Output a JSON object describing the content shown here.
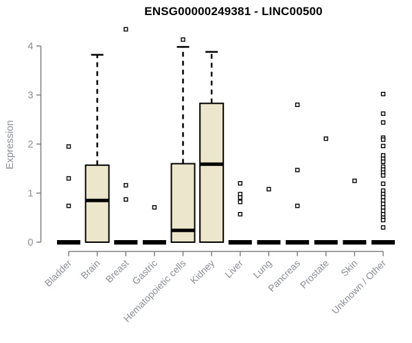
{
  "chart_data": {
    "type": "boxplot",
    "title": "ENSG00000249381 - LINC00500",
    "ylabel": "Expression",
    "xlabel": "",
    "ylim": [
      0,
      4
    ],
    "yticks": [
      0,
      1,
      2,
      3,
      4
    ],
    "grid": false,
    "legend": "none",
    "colors": {
      "box_fill": "#ebe6cc",
      "box_border": "#000000",
      "median": "#000000",
      "whisker": "#000000",
      "outlier_fill": "#ffffff",
      "outlier_border": "#000000",
      "axis": "#7f7f7f",
      "tick_text": "#898d95",
      "title_text": "#000000"
    },
    "categories": [
      "Bladder",
      "Brain",
      "Breast",
      "Gastric",
      "Hematopoietic cells",
      "Kidney",
      "Liver",
      "Lung",
      "Pancreas",
      "Prostate",
      "Skin",
      "Unknown / Other"
    ],
    "series": [
      {
        "category": "Bladder",
        "q1": 0,
        "median": 0,
        "q3": 0,
        "whisker_low": 0,
        "whisker_high": 0,
        "outliers": [
          1.95,
          1.3,
          0.74
        ]
      },
      {
        "category": "Brain",
        "q1": 0,
        "median": 0.85,
        "q3": 1.57,
        "whisker_low": 0,
        "whisker_high": 3.82,
        "outliers": []
      },
      {
        "category": "Breast",
        "q1": 0,
        "median": 0,
        "q3": 0,
        "whisker_low": 0,
        "whisker_high": 0,
        "outliers": [
          4.34,
          1.16,
          0.87
        ]
      },
      {
        "category": "Gastric",
        "q1": 0,
        "median": 0,
        "q3": 0,
        "whisker_low": 0,
        "whisker_high": 0,
        "outliers": [
          0.71
        ]
      },
      {
        "category": "Hematopoietic cells",
        "q1": 0,
        "median": 0.24,
        "q3": 1.6,
        "whisker_low": 0,
        "whisker_high": 3.98,
        "outliers": [
          4.13
        ]
      },
      {
        "category": "Kidney",
        "q1": 0,
        "median": 1.59,
        "q3": 2.83,
        "whisker_low": 0,
        "whisker_high": 3.88,
        "outliers": []
      },
      {
        "category": "Liver",
        "q1": 0,
        "median": 0,
        "q3": 0,
        "whisker_low": 0,
        "whisker_high": 0,
        "outliers": [
          1.2,
          0.98,
          0.91,
          0.82,
          0.57
        ]
      },
      {
        "category": "Lung",
        "q1": 0,
        "median": 0,
        "q3": 0,
        "whisker_low": 0,
        "whisker_high": 0,
        "outliers": [
          1.08
        ]
      },
      {
        "category": "Pancreas",
        "q1": 0,
        "median": 0,
        "q3": 0,
        "whisker_low": 0,
        "whisker_high": 0,
        "outliers": [
          2.8,
          1.47,
          0.74
        ]
      },
      {
        "category": "Prostate",
        "q1": 0,
        "median": 0,
        "q3": 0,
        "whisker_low": 0,
        "whisker_high": 0,
        "outliers": [
          2.11
        ]
      },
      {
        "category": "Skin",
        "q1": 0,
        "median": 0,
        "q3": 0,
        "whisker_low": 0,
        "whisker_high": 0,
        "outliers": [
          1.25
        ]
      },
      {
        "category": "Unknown / Other",
        "q1": 0,
        "median": 0,
        "q3": 0,
        "whisker_low": 0,
        "whisker_high": 0,
        "outliers": [
          3.02,
          2.62,
          2.44,
          2.13,
          2.09,
          1.96,
          1.77,
          1.7,
          1.64,
          1.54,
          1.48,
          1.42,
          1.36,
          1.19,
          1.05,
          0.98,
          0.92,
          0.85,
          0.78,
          0.71,
          0.64,
          0.57,
          0.5,
          0.45,
          0.3
        ]
      }
    ]
  }
}
